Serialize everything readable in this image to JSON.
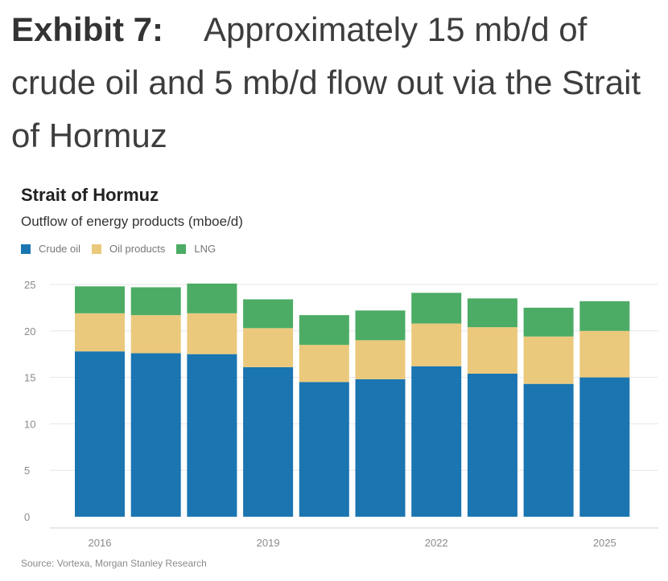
{
  "exhibit": {
    "label": "Exhibit 7:",
    "headline": "Approximately 15 mb/d of crude oil and 5 mb/d flow out via the Strait of Hormuz"
  },
  "chart_data": {
    "type": "bar",
    "stacked": true,
    "title": "Strait of Hormuz",
    "subtitle": "Outflow of energy products (mboe/d)",
    "xlabel": "",
    "ylabel": "",
    "ylim": [
      0,
      25
    ],
    "y_ticks": [
      0,
      5,
      10,
      15,
      20,
      25
    ],
    "grid": true,
    "legend_position": "top-left",
    "categories": [
      "2016",
      "2017",
      "2018",
      "2019",
      "2020",
      "2021",
      "2022",
      "2023",
      "2024",
      "2025"
    ],
    "x_tick_labels": [
      "2016",
      "",
      "",
      "2019",
      "",
      "",
      "2022",
      "",
      "",
      "2025"
    ],
    "series": [
      {
        "name": "Crude oil",
        "color": "#1a75b1",
        "values": [
          17.8,
          17.6,
          17.5,
          16.1,
          14.5,
          14.8,
          16.2,
          15.4,
          14.3,
          15.0
        ]
      },
      {
        "name": "Oil products",
        "color": "#ebc97c",
        "values": [
          4.1,
          4.1,
          4.4,
          4.2,
          4.0,
          4.2,
          4.6,
          5.0,
          5.1,
          5.0
        ]
      },
      {
        "name": "LNG",
        "color": "#4cac65",
        "values": [
          2.9,
          3.0,
          3.2,
          3.1,
          3.2,
          3.2,
          3.3,
          3.1,
          3.1,
          3.2
        ]
      }
    ],
    "source": "Source: Vortexa, Morgan Stanley Research"
  }
}
